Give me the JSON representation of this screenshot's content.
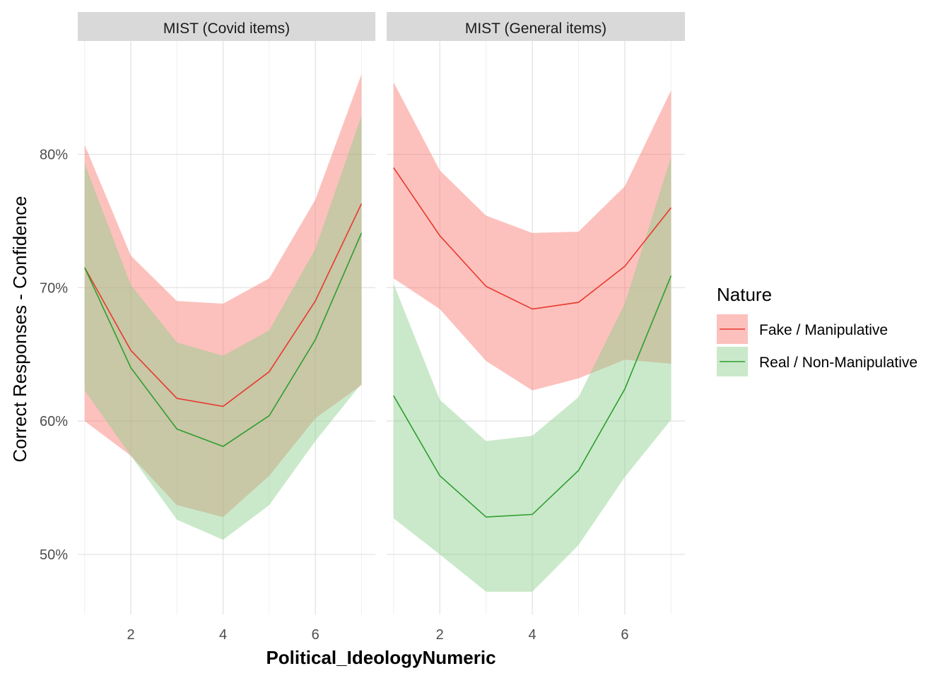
{
  "chart_data": {
    "type": "line",
    "xlabel": "Political_IdeologyNumeric",
    "ylabel": "Correct Responses - Confidence",
    "xlim": [
      0.85,
      7.3
    ],
    "ylim": [
      0.455,
      0.885
    ],
    "x_ticks": [
      2,
      4,
      6
    ],
    "y_ticks": [
      0.5,
      0.6,
      0.7,
      0.8
    ],
    "y_tick_labels": [
      "50%",
      "60%",
      "70%",
      "80%"
    ],
    "grid": true,
    "legend": {
      "title": "Nature",
      "placement": "right",
      "entries": [
        {
          "label": "Fake / Manipulative",
          "color": "#E8392D",
          "fill": "#F8766D"
        },
        {
          "label": "Real / Non-Manipulative",
          "color": "#2E9E2E",
          "fill": "#8ACF8A"
        }
      ]
    },
    "panels": [
      {
        "title": "MIST (Covid items)",
        "series": [
          {
            "name": "Fake / Manipulative",
            "x": [
              1,
              2,
              3,
              4,
              5,
              6,
              7
            ],
            "y": [
              0.715,
              0.653,
              0.617,
              0.611,
              0.637,
              0.69,
              0.763
            ],
            "lower": [
              0.6,
              0.574,
              0.537,
              0.528,
              0.559,
              0.602,
              0.627
            ],
            "upper": [
              0.807,
              0.724,
              0.69,
              0.688,
              0.707,
              0.766,
              0.86
            ]
          },
          {
            "name": "Real / Non-Manipulative",
            "x": [
              1,
              2,
              3,
              4,
              5,
              6,
              7
            ],
            "y": [
              0.715,
              0.64,
              0.594,
              0.581,
              0.604,
              0.661,
              0.741
            ],
            "lower": [
              0.623,
              0.574,
              0.526,
              0.511,
              0.537,
              0.585,
              0.628
            ],
            "upper": [
              0.793,
              0.702,
              0.659,
              0.649,
              0.668,
              0.729,
              0.829
            ]
          }
        ]
      },
      {
        "title": "MIST (General items)",
        "series": [
          {
            "name": "Fake / Manipulative",
            "x": [
              1,
              2,
              3,
              4,
              5,
              6,
              7
            ],
            "y": [
              0.79,
              0.739,
              0.701,
              0.684,
              0.689,
              0.716,
              0.76
            ],
            "lower": [
              0.707,
              0.684,
              0.645,
              0.623,
              0.632,
              0.646,
              0.643
            ],
            "upper": [
              0.854,
              0.788,
              0.754,
              0.741,
              0.742,
              0.776,
              0.848
            ]
          },
          {
            "name": "Real / Non-Manipulative",
            "x": [
              1,
              2,
              3,
              4,
              5,
              6,
              7
            ],
            "y": [
              0.619,
              0.559,
              0.528,
              0.53,
              0.563,
              0.624,
              0.709
            ],
            "lower": [
              0.527,
              0.5,
              0.472,
              0.472,
              0.507,
              0.558,
              0.601
            ],
            "upper": [
              0.703,
              0.616,
              0.585,
              0.589,
              0.618,
              0.688,
              0.798
            ]
          }
        ]
      }
    ]
  }
}
